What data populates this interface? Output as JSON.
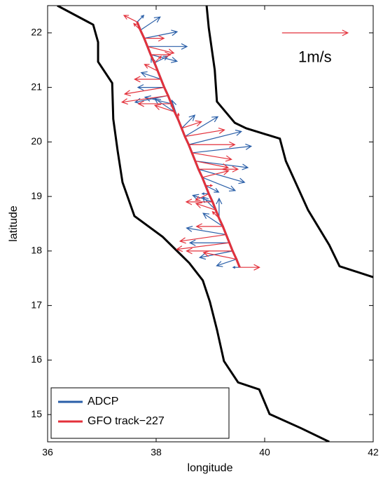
{
  "chart_data": {
    "type": "quiver",
    "xlabel": "longitude",
    "ylabel": "latitude",
    "xlim": [
      36,
      42
    ],
    "ylim": [
      14.5,
      22.5
    ],
    "xticks": [
      36,
      38,
      40,
      42
    ],
    "yticks": [
      15,
      16,
      17,
      18,
      19,
      20,
      21,
      22
    ],
    "legend": "lower left",
    "x": [
      37.65,
      37.71,
      37.78,
      37.84,
      37.9,
      37.97,
      38.03,
      38.09,
      38.15,
      38.22,
      38.28,
      38.34,
      38.41,
      38.47,
      38.53,
      38.6,
      38.66,
      38.72,
      38.78,
      38.85,
      38.91,
      38.97,
      39.04,
      39.1,
      39.16,
      39.23,
      39.29,
      39.35,
      39.41,
      39.48,
      39.54
    ],
    "y": [
      22.2,
      22.05,
      21.9,
      21.75,
      21.6,
      21.45,
      21.3,
      21.15,
      21.0,
      20.85,
      20.7,
      20.55,
      20.4,
      20.25,
      20.1,
      19.95,
      19.8,
      19.65,
      19.5,
      19.35,
      19.2,
      19.05,
      18.9,
      18.75,
      18.6,
      18.45,
      18.3,
      18.15,
      18.0,
      17.85,
      17.7
    ],
    "series": [
      {
        "name": "ADCP",
        "color": "#2a5fa8",
        "u": [
          0.1,
          0.3,
          0.5,
          0.6,
          0.4,
          0.2,
          -0.1,
          -0.3,
          -0.4,
          -0.5,
          -0.4,
          -0.3,
          -0.1,
          0.2,
          0.5,
          0.8,
          0.9,
          0.8,
          0.7,
          0.5,
          0.2,
          -0.1,
          -0.3,
          -0.2,
          0.0,
          -0.3,
          -0.6,
          -0.6,
          -0.5,
          -0.3,
          -0.1
        ],
        "v": [
          0.1,
          0.2,
          0.1,
          0.0,
          -0.1,
          0.1,
          0.2,
          0.1,
          0.0,
          -0.1,
          0.1,
          0.2,
          0.3,
          0.2,
          0.3,
          0.2,
          0.1,
          -0.1,
          -0.2,
          -0.2,
          -0.1,
          0.0,
          0.1,
          0.2,
          0.3,
          0.2,
          0.1,
          0.0,
          -0.1,
          -0.1,
          0.0
        ]
      },
      {
        "name": "GFO track−227",
        "color": "#e3313b",
        "u": [
          -0.2,
          -0.1,
          0.3,
          0.4,
          0.3,
          0.1,
          -0.2,
          -0.4,
          -0.6,
          -0.7,
          -0.5,
          -0.3,
          0.0,
          0.3,
          0.6,
          0.7,
          0.6,
          0.5,
          0.6,
          0.4,
          0.1,
          -0.2,
          -0.4,
          -0.3,
          -0.1,
          -0.4,
          -0.7,
          -0.8,
          -0.7,
          -0.5,
          0.3
        ],
        "v": [
          0.1,
          0.1,
          0.0,
          -0.1,
          0.0,
          0.1,
          0.1,
          0.0,
          -0.1,
          -0.1,
          0.0,
          0.1,
          0.1,
          0.1,
          0.1,
          0.0,
          -0.1,
          -0.1,
          0.0,
          0.1,
          0.0,
          -0.1,
          0.0,
          0.1,
          0.1,
          0.0,
          -0.1,
          -0.1,
          0.0,
          0.1,
          0.0
        ]
      }
    ],
    "reference": {
      "u": 1,
      "lon": 40.32,
      "lat": 22.0,
      "color": "#e3313b",
      "label": "1m/s"
    },
    "coastlines": [
      {
        "lon": [
          36.18,
          36.84,
          36.93,
          36.93,
          37.19,
          37.21,
          37.29,
          37.38,
          37.6,
          38.12,
          38.61,
          38.86,
          38.99,
          39.12,
          39.25,
          39.51,
          39.9,
          40.09,
          40.67,
          41.19
        ],
        "lat": [
          22.5,
          22.15,
          21.83,
          21.47,
          21.08,
          20.42,
          19.84,
          19.26,
          18.64,
          18.26,
          17.78,
          17.46,
          17.07,
          16.56,
          15.98,
          15.59,
          15.46,
          15.01,
          14.75,
          14.5
        ]
      },
      {
        "lon": [
          38.93,
          38.97,
          39.08,
          39.12,
          39.45,
          39.66,
          40.28,
          40.39,
          40.8,
          41.19,
          41.38,
          42
        ],
        "lat": [
          22.5,
          22.09,
          21.32,
          20.74,
          20.35,
          20.25,
          20.06,
          19.65,
          18.75,
          18.11,
          17.72,
          17.52
        ]
      }
    ]
  }
}
